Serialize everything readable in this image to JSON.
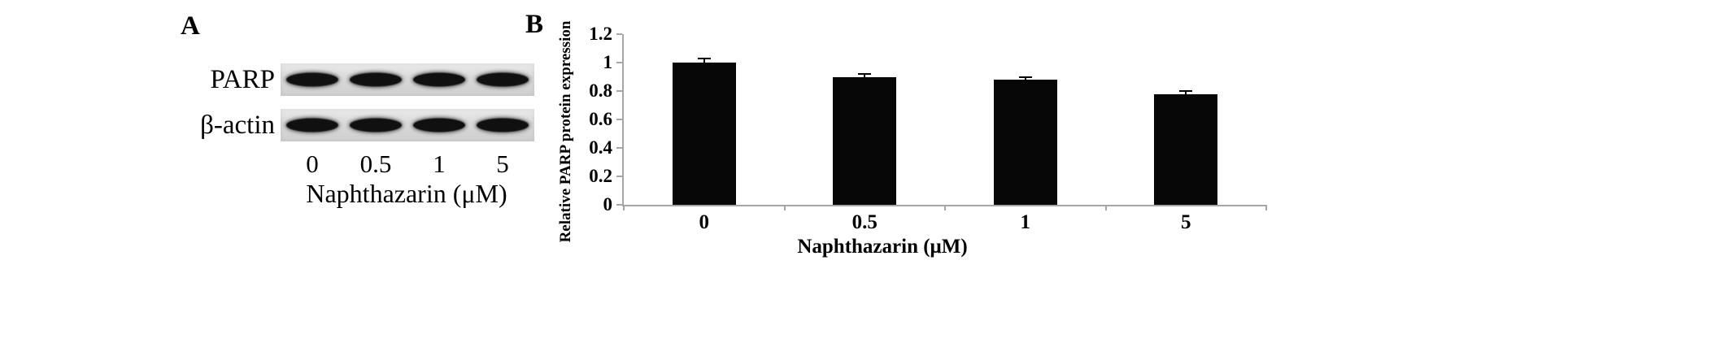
{
  "figure": {
    "background": "#ffffff"
  },
  "panelA": {
    "label": "A",
    "rows": [
      {
        "label": "PARP"
      },
      {
        "label": "β-actin"
      }
    ],
    "doses": [
      "0",
      "0.5",
      "1",
      "5"
    ],
    "xlabel": "Naphthazarin (μM)",
    "band_color": "#101010",
    "strip_color": "#d9d9d9"
  },
  "panelB": {
    "label": "B"
  },
  "chart_data": {
    "type": "bar",
    "title": "",
    "categories": [
      "0",
      "0.5",
      "1",
      "5"
    ],
    "values": [
      1.0,
      0.9,
      0.88,
      0.78
    ],
    "errors": [
      0.03,
      0.02,
      0.02,
      0.02
    ],
    "xlabel": "Naphthazarin (μM)",
    "ylabel": "Relative PARP protein expression",
    "ylim": [
      0,
      1.2
    ],
    "yticks": [
      0,
      0.2,
      0.4,
      0.6,
      0.8,
      1,
      1.2
    ],
    "bar_color": "#060606",
    "error_bar_color": "#000000",
    "axis_color": "#a6a6a6",
    "grid": false,
    "legend": false
  }
}
